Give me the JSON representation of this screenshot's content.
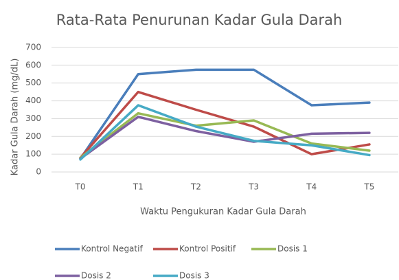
{
  "chart_data": {
    "type": "line",
    "title": "Rata-Rata Penurunan Kadar Gula Darah",
    "x_label": "Waktu Pengukuran Kadar Gula Darah",
    "y_label": "Kadar Gula Darah (mg/dL)",
    "categories": [
      "T0",
      "T1",
      "T2",
      "T3",
      "T4",
      "T5"
    ],
    "series": [
      {
        "name": "Kontrol Negatif",
        "color": "#4a7ebb",
        "values": [
          75,
          550,
          575,
          575,
          375,
          390
        ]
      },
      {
        "name": "Kontrol Positif",
        "color": "#be4b48",
        "values": [
          80,
          450,
          350,
          255,
          100,
          155
        ]
      },
      {
        "name": "Dosis 1",
        "color": "#98b954",
        "values": [
          80,
          330,
          260,
          290,
          160,
          120
        ]
      },
      {
        "name": "Dosis 2",
        "color": "#7d60a0",
        "values": [
          75,
          310,
          230,
          170,
          215,
          220
        ]
      },
      {
        "name": "Dosis 3",
        "color": "#46aac5",
        "values": [
          70,
          375,
          255,
          175,
          150,
          95
        ]
      }
    ],
    "ylim": [
      0,
      700
    ],
    "yticks": [
      0,
      100,
      200,
      300,
      400,
      500,
      600,
      700
    ],
    "grid": true,
    "legend": "bottom"
  }
}
